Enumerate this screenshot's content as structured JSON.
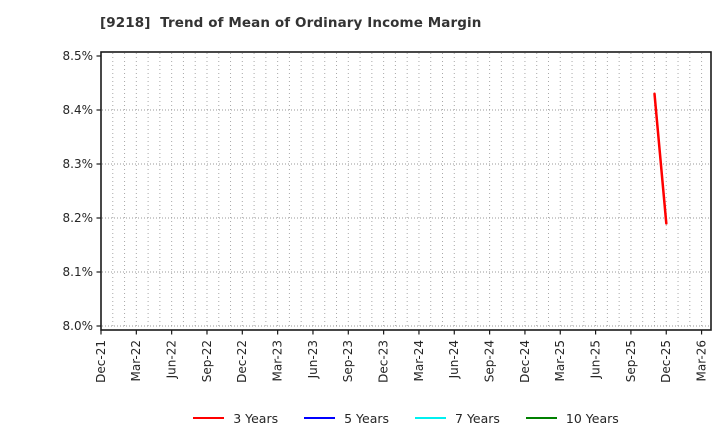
{
  "chart_data": {
    "type": "line",
    "title": "[9218]  Trend of Mean of Ordinary Income Margin",
    "x_tick_labels": [
      "Dec-21",
      "Mar-22",
      "Jun-22",
      "Sep-22",
      "Dec-22",
      "Mar-23",
      "Jun-23",
      "Sep-23",
      "Dec-23",
      "Mar-24",
      "Jun-24",
      "Sep-24",
      "Dec-24",
      "Mar-25",
      "Jun-25",
      "Sep-25",
      "Dec-25",
      "Mar-26"
    ],
    "y_tick_labels": [
      "8.0%",
      "8.1%",
      "8.2%",
      "8.3%",
      "8.4%",
      "8.5%"
    ],
    "ylim": [
      8.0,
      8.5
    ],
    "y_unit": "%",
    "grid": true,
    "grid_style": "dotted",
    "minor_x_grid_interval_months": 1,
    "legend_position": "bottom-center",
    "axis_color": "#1a1a1a",
    "grid_color": "#9a9a9a",
    "text_color": "#262626",
    "title_color": "#333333",
    "series": [
      {
        "name": "3 Years",
        "color": "#ff0000",
        "points": [
          {
            "x": "Nov-25",
            "y": 8.43
          },
          {
            "x": "Dec-25",
            "y": 8.19
          }
        ]
      },
      {
        "name": "5 Years",
        "color": "#0000ff",
        "points": []
      },
      {
        "name": "7 Years",
        "color": "#00f0f0",
        "points": []
      },
      {
        "name": "10 Years",
        "color": "#008000",
        "points": []
      }
    ]
  }
}
